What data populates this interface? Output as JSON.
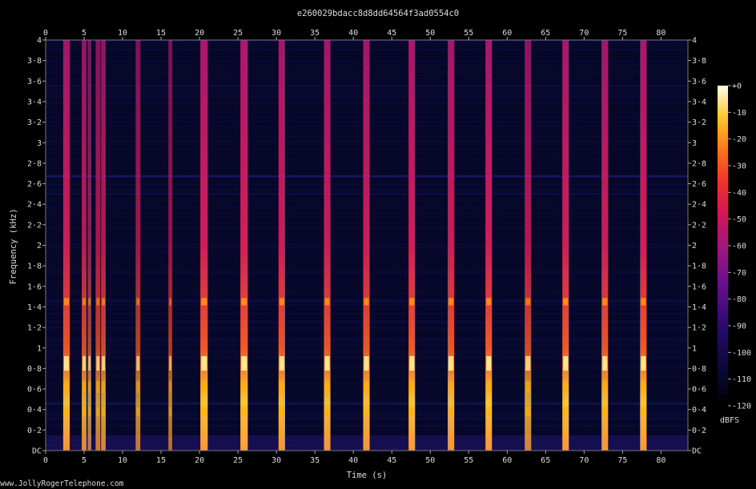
{
  "title": "e260029bdacc8d8dd64564f3ad0554c0",
  "footer": "www.JollyRogerTelephone.com",
  "chart_data": {
    "type": "heatmap",
    "title": "e260029bdacc8d8dd64564f3ad0554c0",
    "xlabel": "Time (s)",
    "ylabel": "Frequency (kHz)",
    "xlim": [
      0,
      83.5
    ],
    "ylim": [
      0,
      4
    ],
    "x_ticks": [
      0,
      5,
      10,
      15,
      20,
      25,
      30,
      35,
      40,
      45,
      50,
      55,
      60,
      65,
      70,
      75,
      80
    ],
    "x_tick_labels": [
      "0",
      "5",
      "10",
      "15",
      "20",
      "25",
      "30",
      "35",
      "40",
      "45",
      "50",
      "55",
      "60",
      "65",
      "70",
      "75",
      "80"
    ],
    "y_ticks": [
      0,
      0.2,
      0.4,
      0.6,
      0.8,
      1,
      1.2,
      1.4,
      1.6,
      1.8,
      2,
      2.2,
      2.4,
      2.6,
      2.8,
      3,
      3.2,
      3.4,
      3.6,
      3.8,
      4
    ],
    "y_tick_labels": [
      "DC",
      "0·2",
      "0·4",
      "0·6",
      "0·8",
      "1",
      "1·2",
      "1·4",
      "1·6",
      "1·8",
      "2",
      "2·2",
      "2·4",
      "2·6",
      "2·8",
      "3",
      "3·2",
      "3·4",
      "3·6",
      "3·8",
      "4"
    ],
    "colorbar": {
      "label": "dBFS",
      "range": [
        -120,
        0
      ],
      "ticks": [
        0,
        -10,
        -20,
        -30,
        -40,
        -50,
        -60,
        -70,
        -80,
        -90,
        -100,
        -110,
        -120
      ],
      "tick_labels": [
        "+0",
        "-10",
        "-20",
        "-30",
        "-40",
        "-50",
        "-60",
        "-70",
        "-80",
        "-90",
        "-100",
        "-110",
        "-120"
      ]
    },
    "bursts": [
      {
        "t": 2.7,
        "width": 0.7,
        "peak_db": -15
      },
      {
        "t": 5.0,
        "width": 0.5,
        "peak_db": -25
      },
      {
        "t": 5.7,
        "width": 0.4,
        "peak_db": -40
      },
      {
        "t": 6.8,
        "width": 0.5,
        "peak_db": -35
      },
      {
        "t": 7.5,
        "width": 0.5,
        "peak_db": -30
      },
      {
        "t": 12.0,
        "width": 0.5,
        "peak_db": -40
      },
      {
        "t": 16.2,
        "width": 0.4,
        "peak_db": -45
      },
      {
        "t": 20.6,
        "width": 0.8,
        "peak_db": -12
      },
      {
        "t": 25.8,
        "width": 0.8,
        "peak_db": -10
      },
      {
        "t": 30.7,
        "width": 0.7,
        "peak_db": -15
      },
      {
        "t": 36.6,
        "width": 0.7,
        "peak_db": -15
      },
      {
        "t": 41.7,
        "width": 0.7,
        "peak_db": -15
      },
      {
        "t": 47.6,
        "width": 0.7,
        "peak_db": -12
      },
      {
        "t": 52.7,
        "width": 0.7,
        "peak_db": -15
      },
      {
        "t": 57.6,
        "width": 0.7,
        "peak_db": -12
      },
      {
        "t": 62.7,
        "width": 0.7,
        "peak_db": -30
      },
      {
        "t": 67.6,
        "width": 0.7,
        "peak_db": -12
      },
      {
        "t": 72.7,
        "width": 0.7,
        "peak_db": -15
      },
      {
        "t": 77.7,
        "width": 0.7,
        "peak_db": -12
      }
    ],
    "colors": {
      "background": "#000000",
      "noise_floor": "#0a0a3a",
      "burst_body": "#c2185b",
      "burst_hot": "#ffb300",
      "burst_peak": "#fff59d"
    }
  }
}
